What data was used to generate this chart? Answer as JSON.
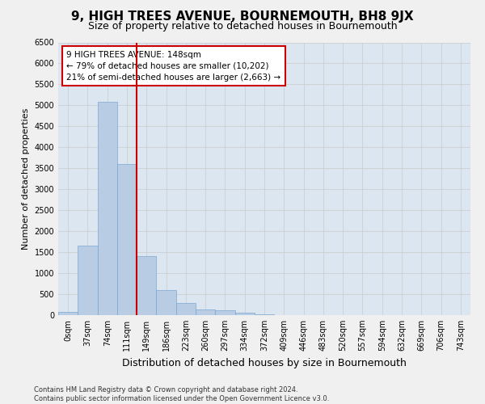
{
  "title": "9, HIGH TREES AVENUE, BOURNEMOUTH, BH8 9JX",
  "subtitle": "Size of property relative to detached houses in Bournemouth",
  "xlabel": "Distribution of detached houses by size in Bournemouth",
  "ylabel": "Number of detached properties",
  "footer_line1": "Contains HM Land Registry data © Crown copyright and database right 2024.",
  "footer_line2": "Contains public sector information licensed under the Open Government Licence v3.0.",
  "bar_categories": [
    "0sqm",
    "37sqm",
    "74sqm",
    "111sqm",
    "149sqm",
    "186sqm",
    "223sqm",
    "260sqm",
    "297sqm",
    "334sqm",
    "372sqm",
    "409sqm",
    "446sqm",
    "483sqm",
    "520sqm",
    "557sqm",
    "594sqm",
    "632sqm",
    "669sqm",
    "706sqm",
    "743sqm"
  ],
  "bar_values": [
    75,
    1650,
    5080,
    3600,
    1400,
    600,
    290,
    130,
    110,
    65,
    20,
    0,
    0,
    0,
    0,
    0,
    0,
    0,
    0,
    0,
    0
  ],
  "bar_color": "#b8cce4",
  "bar_edge_color": "#7ca6d1",
  "vline_x_index": 3.5,
  "vline_color": "#cc0000",
  "annotation_title": "9 HIGH TREES AVENUE: 148sqm",
  "annotation_line2": "← 79% of detached houses are smaller (10,202)",
  "annotation_line3": "21% of semi-detached houses are larger (2,663) →",
  "annotation_box_color": "#cc0000",
  "ylim": [
    0,
    6500
  ],
  "yticks": [
    0,
    500,
    1000,
    1500,
    2000,
    2500,
    3000,
    3500,
    4000,
    4500,
    5000,
    5500,
    6000,
    6500
  ],
  "grid_color": "#cccccc",
  "bg_color": "#dce6f0",
  "fig_bg_color": "#f0f0f0",
  "title_fontsize": 11,
  "subtitle_fontsize": 9,
  "xlabel_fontsize": 9,
  "ylabel_fontsize": 8,
  "tick_fontsize": 7,
  "annotation_fontsize": 7.5,
  "footer_fontsize": 6
}
